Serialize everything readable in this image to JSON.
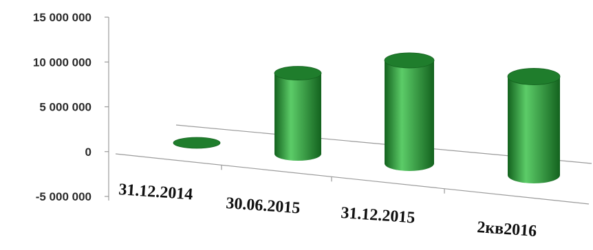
{
  "chart_data": {
    "type": "bar",
    "style": "3d-cylinder",
    "categories": [
      "31.12.2014",
      "30.06.2015",
      "31.12.2015",
      "2кв2016"
    ],
    "values": [
      0,
      9000000,
      11500000,
      11000000
    ],
    "ylim": [
      -5000000,
      15000000
    ],
    "yticks": [
      15000000,
      10000000,
      5000000,
      0,
      -5000000
    ],
    "ytick_labels": [
      "15 000 000",
      "10 000 000",
      "5 000 000",
      "0",
      "-5 000 000"
    ],
    "grid": false,
    "legend": "none",
    "colors": {
      "bar": "#2e9a3c",
      "bar_dark": "#13621e",
      "bar_light": "#5ccc68",
      "top": "#1f7d2c",
      "axis": "#9a9a9a"
    }
  }
}
